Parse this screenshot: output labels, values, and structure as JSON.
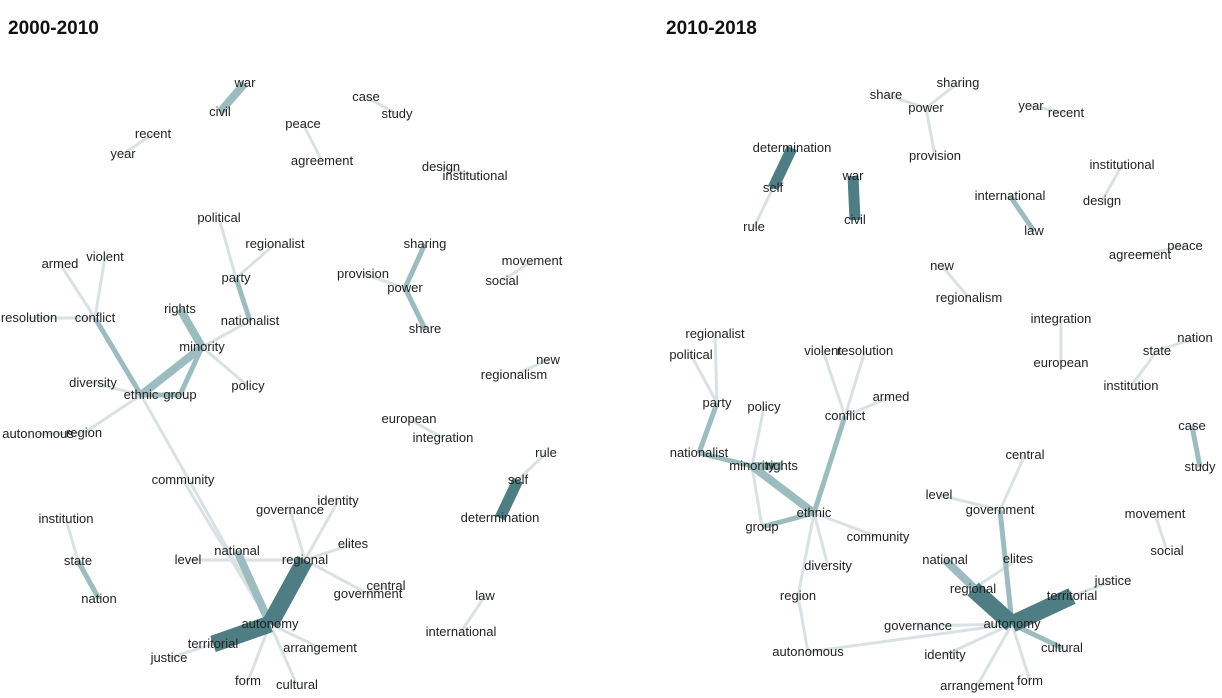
{
  "colors": {
    "edge_strong": "#4e7e84",
    "edge_medium": "#9dbcbf",
    "edge_light": "#d9e2e3",
    "text": "#222222"
  },
  "panels": [
    {
      "title": "2000-2010",
      "nodes": [
        "war",
        "civil",
        "case",
        "study",
        "peace",
        "agreement",
        "recent",
        "year",
        "design",
        "institutional",
        "political",
        "regionalist",
        "party",
        "nationalist",
        "sharing",
        "provision",
        "power",
        "share",
        "movement",
        "social",
        "armed",
        "violent",
        "resolution",
        "conflict",
        "rights",
        "minority",
        "policy",
        "diversity",
        "ethnic",
        "group",
        "new",
        "regionalism",
        "autonomous",
        "region",
        "european",
        "integration",
        "rule",
        "self",
        "determination",
        "community",
        "identity",
        "governance",
        "institution",
        "state",
        "nation",
        "national",
        "regional",
        "level",
        "elites",
        "central",
        "government",
        "law",
        "international",
        "autonomy",
        "territorial",
        "justice",
        "arrangement",
        "form",
        "cultural"
      ],
      "edges": [
        {
          "source": "war",
          "target": "civil",
          "weight": 3
        },
        {
          "source": "case",
          "target": "study",
          "weight": 1
        },
        {
          "source": "peace",
          "target": "agreement",
          "weight": 1
        },
        {
          "source": "recent",
          "target": "year",
          "weight": 1
        },
        {
          "source": "design",
          "target": "institutional",
          "weight": 1
        },
        {
          "source": "political",
          "target": "party",
          "weight": 1
        },
        {
          "source": "regionalist",
          "target": "party",
          "weight": 1
        },
        {
          "source": "party",
          "target": "nationalist",
          "weight": 2
        },
        {
          "source": "sharing",
          "target": "power",
          "weight": 2
        },
        {
          "source": "provision",
          "target": "power",
          "weight": 1
        },
        {
          "source": "power",
          "target": "share",
          "weight": 2
        },
        {
          "source": "movement",
          "target": "social",
          "weight": 1
        },
        {
          "source": "armed",
          "target": "conflict",
          "weight": 1
        },
        {
          "source": "violent",
          "target": "conflict",
          "weight": 1
        },
        {
          "source": "resolution",
          "target": "conflict",
          "weight": 1
        },
        {
          "source": "conflict",
          "target": "ethnic",
          "weight": 2
        },
        {
          "source": "rights",
          "target": "minority",
          "weight": 3
        },
        {
          "source": "nationalist",
          "target": "minority",
          "weight": 1
        },
        {
          "source": "minority",
          "target": "ethnic",
          "weight": 3
        },
        {
          "source": "minority",
          "target": "group",
          "weight": 2
        },
        {
          "source": "minority",
          "target": "policy",
          "weight": 1
        },
        {
          "source": "diversity",
          "target": "ethnic",
          "weight": 1
        },
        {
          "source": "ethnic",
          "target": "group",
          "weight": 2
        },
        {
          "source": "ethnic",
          "target": "region",
          "weight": 1
        },
        {
          "source": "autonomous",
          "target": "region",
          "weight": 1
        },
        {
          "source": "ethnic",
          "target": "autonomy",
          "weight": 1
        },
        {
          "source": "new",
          "target": "regionalism",
          "weight": 1
        },
        {
          "source": "european",
          "target": "integration",
          "weight": 1
        },
        {
          "source": "rule",
          "target": "self",
          "weight": 1
        },
        {
          "source": "self",
          "target": "determination",
          "weight": 4
        },
        {
          "source": "community",
          "target": "autonomy",
          "weight": 1
        },
        {
          "source": "identity",
          "target": "regional",
          "weight": 1
        },
        {
          "source": "governance",
          "target": "regional",
          "weight": 1
        },
        {
          "source": "institution",
          "target": "state",
          "weight": 1
        },
        {
          "source": "state",
          "target": "nation",
          "weight": 2
        },
        {
          "source": "national",
          "target": "autonomy",
          "weight": 3
        },
        {
          "source": "regional",
          "target": "autonomy",
          "weight": 5
        },
        {
          "source": "level",
          "target": "regional",
          "weight": 1
        },
        {
          "source": "elites",
          "target": "regional",
          "weight": 1
        },
        {
          "source": "central",
          "target": "government",
          "weight": 1
        },
        {
          "source": "government",
          "target": "regional",
          "weight": 1
        },
        {
          "source": "law",
          "target": "international",
          "weight": 1
        },
        {
          "source": "autonomy",
          "target": "territorial",
          "weight": 5
        },
        {
          "source": "justice",
          "target": "territorial",
          "weight": 1
        },
        {
          "source": "autonomy",
          "target": "arrangement",
          "weight": 1
        },
        {
          "source": "autonomy",
          "target": "cultural",
          "weight": 1
        },
        {
          "source": "form",
          "target": "autonomy",
          "weight": 1
        }
      ]
    },
    {
      "title": "2010-2018",
      "nodes": [
        "share",
        "sharing",
        "power",
        "year",
        "recent",
        "provision",
        "determination",
        "self",
        "rule",
        "war",
        "civil",
        "institutional",
        "international",
        "design",
        "law",
        "agreement",
        "peace",
        "new",
        "regionalism",
        "integration",
        "regionalist",
        "political",
        "violent",
        "resolution",
        "european",
        "state",
        "nation",
        "institution",
        "armed",
        "conflict",
        "party",
        "policy",
        "case",
        "study",
        "nationalist",
        "minority",
        "rights",
        "central",
        "group",
        "ethnic",
        "level",
        "government",
        "movement",
        "community",
        "diversity",
        "national",
        "elites",
        "social",
        "region",
        "regional",
        "territorial",
        "justice",
        "governance",
        "autonomy",
        "cultural",
        "autonomous",
        "identity",
        "arrangement",
        "form"
      ],
      "edges": [
        {
          "source": "share",
          "target": "power",
          "weight": 1
        },
        {
          "source": "sharing",
          "target": "power",
          "weight": 1
        },
        {
          "source": "power",
          "target": "provision",
          "weight": 1
        },
        {
          "source": "year",
          "target": "recent",
          "weight": 1
        },
        {
          "source": "determination",
          "target": "self",
          "weight": 4
        },
        {
          "source": "self",
          "target": "rule",
          "weight": 1
        },
        {
          "source": "war",
          "target": "civil",
          "weight": 4
        },
        {
          "source": "institutional",
          "target": "design",
          "weight": 1
        },
        {
          "source": "international",
          "target": "law",
          "weight": 2
        },
        {
          "source": "agreement",
          "target": "peace",
          "weight": 1
        },
        {
          "source": "new",
          "target": "regionalism",
          "weight": 1
        },
        {
          "source": "integration",
          "target": "european",
          "weight": 1
        },
        {
          "source": "regionalist",
          "target": "party",
          "weight": 1
        },
        {
          "source": "political",
          "target": "party",
          "weight": 1
        },
        {
          "source": "party",
          "target": "nationalist",
          "weight": 2
        },
        {
          "source": "nationalist",
          "target": "minority",
          "weight": 2
        },
        {
          "source": "minority",
          "target": "rights",
          "weight": 3
        },
        {
          "source": "minority",
          "target": "ethnic",
          "weight": 3
        },
        {
          "source": "group",
          "target": "ethnic",
          "weight": 2
        },
        {
          "source": "group",
          "target": "minority",
          "weight": 1
        },
        {
          "source": "violent",
          "target": "conflict",
          "weight": 1
        },
        {
          "source": "resolution",
          "target": "conflict",
          "weight": 1
        },
        {
          "source": "armed",
          "target": "conflict",
          "weight": 1
        },
        {
          "source": "conflict",
          "target": "ethnic",
          "weight": 2
        },
        {
          "source": "policy",
          "target": "minority",
          "weight": 1
        },
        {
          "source": "ethnic",
          "target": "community",
          "weight": 1
        },
        {
          "source": "ethnic",
          "target": "diversity",
          "weight": 1
        },
        {
          "source": "ethnic",
          "target": "region",
          "weight": 1
        },
        {
          "source": "region",
          "target": "autonomous",
          "weight": 1
        },
        {
          "source": "state",
          "target": "nation",
          "weight": 1
        },
        {
          "source": "state",
          "target": "institution",
          "weight": 1
        },
        {
          "source": "case",
          "target": "study",
          "weight": 2
        },
        {
          "source": "movement",
          "target": "social",
          "weight": 1
        },
        {
          "source": "central",
          "target": "government",
          "weight": 1
        },
        {
          "source": "level",
          "target": "government",
          "weight": 1
        },
        {
          "source": "government",
          "target": "autonomy",
          "weight": 2
        },
        {
          "source": "national",
          "target": "autonomy",
          "weight": 3
        },
        {
          "source": "elites",
          "target": "regional",
          "weight": 1
        },
        {
          "source": "regional",
          "target": "autonomy",
          "weight": 5
        },
        {
          "source": "autonomy",
          "target": "territorial",
          "weight": 5
        },
        {
          "source": "territorial",
          "target": "justice",
          "weight": 1
        },
        {
          "source": "governance",
          "target": "autonomy",
          "weight": 1
        },
        {
          "source": "autonomy",
          "target": "cultural",
          "weight": 2
        },
        {
          "source": "autonomy",
          "target": "identity",
          "weight": 1
        },
        {
          "source": "autonomy",
          "target": "arrangement",
          "weight": 1
        },
        {
          "source": "autonomy",
          "target": "form",
          "weight": 1
        },
        {
          "source": "autonomy",
          "target": "autonomous",
          "weight": 1
        }
      ]
    }
  ]
}
